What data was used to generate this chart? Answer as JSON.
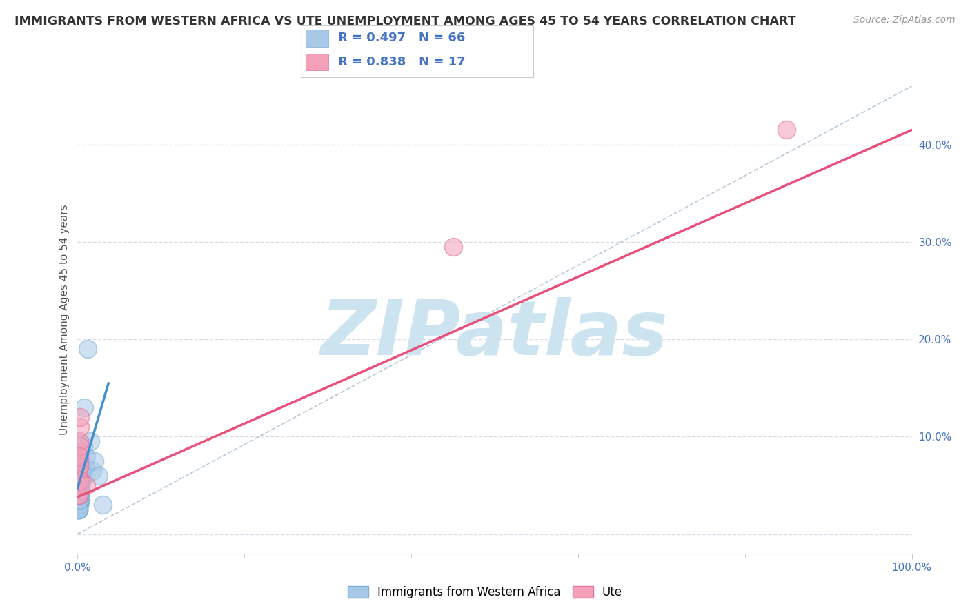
{
  "title": "IMMIGRANTS FROM WESTERN AFRICA VS UTE UNEMPLOYMENT AMONG AGES 45 TO 54 YEARS CORRELATION CHART",
  "source": "Source: ZipAtlas.com",
  "ylabel": "Unemployment Among Ages 45 to 54 years",
  "xlim": [
    0.0,
    1.0
  ],
  "ylim": [
    -0.02,
    0.46
  ],
  "yticks": [
    0.0,
    0.1,
    0.2,
    0.3,
    0.4
  ],
  "yticklabels": [
    "",
    "10.0%",
    "20.0%",
    "30.0%",
    "40.0%"
  ],
  "xtick_positions": [
    0.0,
    1.0
  ],
  "xtick_labels": [
    "0.0%",
    "100.0%"
  ],
  "blue_R": 0.497,
  "blue_N": 66,
  "pink_R": 0.838,
  "pink_N": 17,
  "blue_color": "#a8c8e8",
  "pink_color": "#f4a0b8",
  "blue_edge_color": "#7aaed0",
  "pink_edge_color": "#e070a0",
  "blue_line_color": "#4090d0",
  "pink_line_color": "#e8507a",
  "ref_line_color": "#b8c8d8",
  "grid_color": "#d8dde8",
  "watermark_color": "#cce4f0",
  "watermark_text": "ZIPatlas",
  "legend_text_color": "#4472c4",
  "blue_scatter_x": [
    0.001,
    0.002,
    0.001,
    0.003,
    0.002,
    0.001,
    0.003,
    0.004,
    0.002,
    0.001,
    0.002,
    0.003,
    0.001,
    0.002,
    0.004,
    0.003,
    0.001,
    0.002,
    0.003,
    0.004,
    0.001,
    0.002,
    0.001,
    0.003,
    0.002,
    0.004,
    0.003,
    0.001,
    0.002,
    0.003,
    0.001,
    0.004,
    0.002,
    0.003,
    0.001,
    0.002,
    0.004,
    0.003,
    0.001,
    0.002,
    0.003,
    0.004,
    0.001,
    0.002,
    0.003,
    0.004,
    0.001,
    0.002,
    0.003,
    0.004,
    0.001,
    0.002,
    0.003,
    0.004,
    0.005,
    0.006,
    0.007,
    0.008,
    0.009,
    0.01,
    0.012,
    0.015,
    0.018,
    0.02,
    0.025,
    0.03
  ],
  "blue_scatter_y": [
    0.03,
    0.04,
    0.05,
    0.035,
    0.045,
    0.06,
    0.055,
    0.065,
    0.07,
    0.025,
    0.04,
    0.05,
    0.03,
    0.055,
    0.06,
    0.045,
    0.035,
    0.04,
    0.065,
    0.07,
    0.025,
    0.03,
    0.04,
    0.05,
    0.035,
    0.055,
    0.045,
    0.06,
    0.065,
    0.07,
    0.025,
    0.035,
    0.04,
    0.05,
    0.055,
    0.06,
    0.065,
    0.045,
    0.03,
    0.035,
    0.04,
    0.05,
    0.025,
    0.03,
    0.055,
    0.06,
    0.035,
    0.04,
    0.045,
    0.065,
    0.025,
    0.035,
    0.04,
    0.045,
    0.055,
    0.065,
    0.09,
    0.13,
    0.07,
    0.08,
    0.19,
    0.095,
    0.065,
    0.075,
    0.06,
    0.03
  ],
  "pink_scatter_x": [
    0.001,
    0.001,
    0.002,
    0.002,
    0.001,
    0.002,
    0.003,
    0.001,
    0.002,
    0.003,
    0.001,
    0.002,
    0.003,
    0.003,
    0.01,
    0.45,
    0.85
  ],
  "pink_scatter_y": [
    0.04,
    0.06,
    0.085,
    0.095,
    0.065,
    0.075,
    0.11,
    0.055,
    0.07,
    0.09,
    0.04,
    0.08,
    0.055,
    0.12,
    0.05,
    0.295,
    0.415
  ],
  "blue_trend_x": [
    0.0,
    0.037
  ],
  "blue_trend_y": [
    0.047,
    0.155
  ],
  "pink_trend_x": [
    0.0,
    1.0
  ],
  "pink_trend_y": [
    0.038,
    0.415
  ],
  "ref_line_x": [
    0.0,
    1.0
  ],
  "ref_line_y": [
    0.0,
    0.46
  ]
}
